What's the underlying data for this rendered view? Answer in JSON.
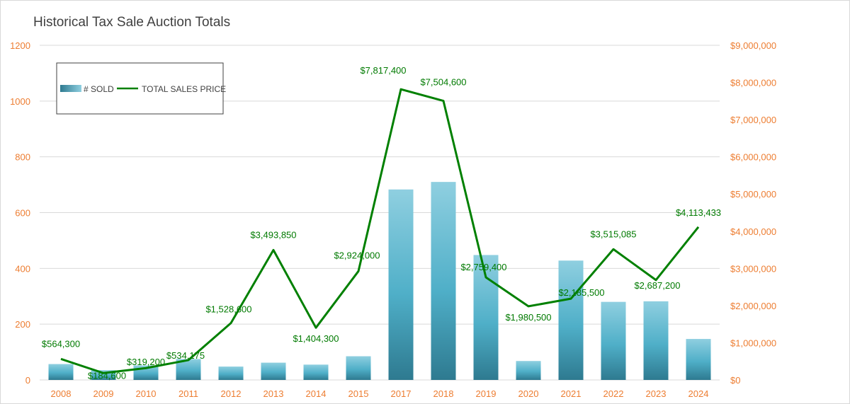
{
  "chart_data": {
    "type": "bar+line",
    "title": "Historical Tax Sale Auction Totals",
    "categories": [
      "2008",
      "2009",
      "2010",
      "2011",
      "2012",
      "2013",
      "2014",
      "2015",
      "2017",
      "2018",
      "2019",
      "2020",
      "2021",
      "2022",
      "2023",
      "2024"
    ],
    "series": [
      {
        "name": "# SOLD",
        "type": "bar",
        "axis": "left",
        "values": [
          57,
          35,
          52,
          75,
          48,
          62,
          55,
          85,
          683,
          710,
          448,
          68,
          428,
          280,
          282,
          147
        ]
      },
      {
        "name": "TOTAL SALES PRICE",
        "type": "line",
        "axis": "right",
        "values": [
          564300,
          184600,
          319200,
          534175,
          1528600,
          3493850,
          1404300,
          2924000,
          7817400,
          7504600,
          2759400,
          1980500,
          2185500,
          3515085,
          2687200,
          4113433
        ],
        "labels": [
          "$564,300",
          "$184,600",
          "$319,200",
          "$534,175",
          "$1,528,600",
          "$3,493,850",
          "$1,404,300",
          "$2,924,000",
          "$7,817,400",
          "$7,504,600",
          "$2,759,400",
          "$1,980,500",
          "$2,185,500",
          "$3,515,085",
          "$2,687,200",
          "$4,113,433"
        ]
      }
    ],
    "left_axis": {
      "ylim": [
        0,
        1200
      ],
      "ticks": [
        0,
        200,
        400,
        600,
        800,
        1000,
        1200
      ],
      "tick_labels": [
        "0",
        "200",
        "400",
        "600",
        "800",
        "1000",
        "1200"
      ]
    },
    "right_axis": {
      "ylim": [
        0,
        9000000
      ],
      "ticks": [
        0,
        1000000,
        2000000,
        3000000,
        4000000,
        5000000,
        6000000,
        7000000,
        8000000,
        9000000
      ],
      "tick_labels": [
        "$0",
        "$1,000,000",
        "$2,000,000",
        "$3,000,000",
        "$4,000,000",
        "$5,000,000",
        "$6,000,000",
        "$7,000,000",
        "$8,000,000",
        "$9,000,000"
      ]
    },
    "legend": {
      "position": "top-left",
      "entries": [
        "# SOLD",
        "TOTAL SALES PRICE"
      ]
    },
    "grid": true,
    "colors": {
      "bar_light": "#8fcfe0",
      "bar_mid": "#4fafc8",
      "bar_dark": "#2e7a90",
      "line": "#008000",
      "label": "#007a00",
      "tick": "#ed7d31",
      "grid": "#d9d9d9"
    }
  }
}
